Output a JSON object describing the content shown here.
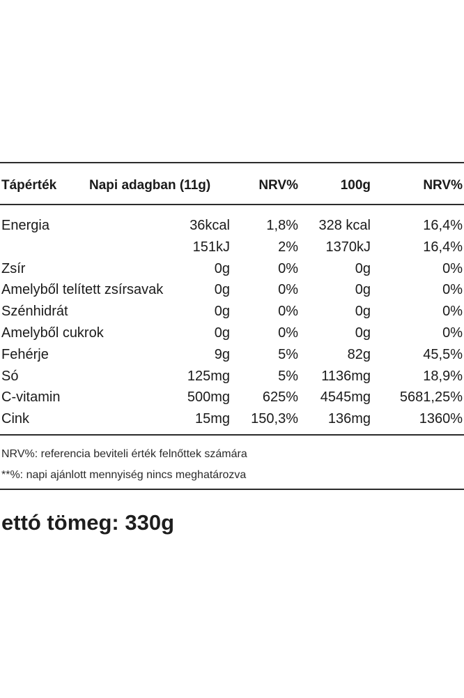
{
  "table": {
    "headers": {
      "name": "Tápérték",
      "per_dose": "Napi adagban (11g)",
      "nrv_dose": "NRV%",
      "per_100": "100g",
      "nrv_100": "NRV%"
    },
    "rows": [
      {
        "name": "Energia",
        "per_dose": "36kcal",
        "nrv_dose": "1,8%",
        "per_100": "328 kcal",
        "nrv_100": "16,4%"
      },
      {
        "name": "",
        "per_dose": "151kJ",
        "nrv_dose": "2%",
        "per_100": "1370kJ",
        "nrv_100": "16,4%"
      },
      {
        "name": "Zsír",
        "per_dose": "0g",
        "nrv_dose": "0%",
        "per_100": "0g",
        "nrv_100": "0%"
      },
      {
        "name": "Amelyből telített zsírsavak",
        "per_dose": "0g",
        "nrv_dose": "0%",
        "per_100": "0g",
        "nrv_100": "0%"
      },
      {
        "name": "Szénhidrát",
        "per_dose": "0g",
        "nrv_dose": "0%",
        "per_100": "0g",
        "nrv_100": "0%"
      },
      {
        "name": "Amelyből cukrok",
        "per_dose": "0g",
        "nrv_dose": "0%",
        "per_100": "0g",
        "nrv_100": "0%"
      },
      {
        "name": "Fehérje",
        "per_dose": "9g",
        "nrv_dose": "5%",
        "per_100": "82g",
        "nrv_100": "45,5%"
      },
      {
        "name": "Só",
        "per_dose": "125mg",
        "nrv_dose": "5%",
        "per_100": "1136mg",
        "nrv_100": "18,9%"
      },
      {
        "name": "C-vitamin",
        "per_dose": "500mg",
        "nrv_dose": "625%",
        "per_100": "4545mg",
        "nrv_100": "5681,25%"
      },
      {
        "name": "Cink",
        "per_dose": "15mg",
        "nrv_dose": "150,3%",
        "per_100": "136mg",
        "nrv_100": "1360%"
      }
    ]
  },
  "notes": {
    "nrv": "NRV%: referencia beviteli érték felnőttek számára",
    "asterisk": "**%: napi ajánlott mennyiség nincs meghatározva"
  },
  "net_weight": "ettó tömeg: 330g"
}
